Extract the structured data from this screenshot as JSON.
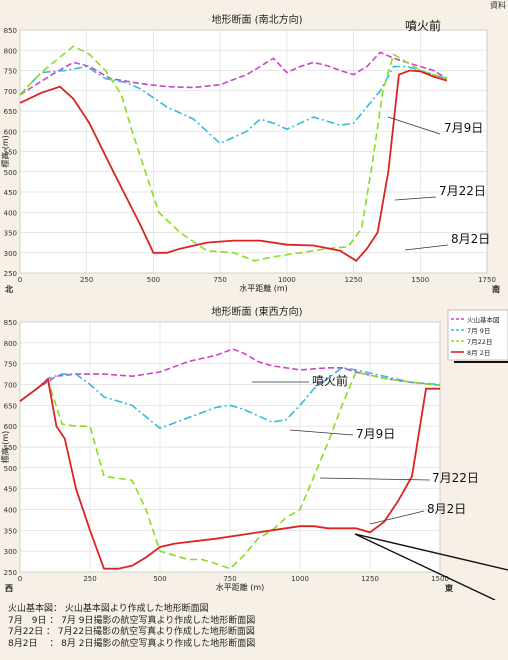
{
  "corner_label": "資料",
  "charts": [
    {
      "title": "地形断面 (南北方向)",
      "ylabel": "標高 (m)",
      "xlabel": "水平距離 (m)",
      "left_dir": "北",
      "right_dir": "南",
      "x_ticks": [
        "0",
        "250",
        "500",
        "750",
        "1000",
        "1250",
        "1500",
        "1750"
      ],
      "y_ticks": [
        "250",
        "300",
        "350",
        "400",
        "450",
        "500",
        "550",
        "600",
        "650",
        "700",
        "750",
        "800",
        "850"
      ],
      "callouts": {
        "pre": "噴火前",
        "jul9": "7月9日",
        "jul22": "7月22日",
        "aug2": "8月2日"
      }
    },
    {
      "title": "地形断面 (東西方向)",
      "ylabel": "標高 (m)",
      "xlabel": "水平距離 (m)",
      "left_dir": "西",
      "right_dir": "東",
      "x_ticks": [
        "0",
        "250",
        "500",
        "750",
        "1000",
        "1250",
        "1500"
      ],
      "y_ticks": [
        "250",
        "300",
        "350",
        "400",
        "450",
        "500",
        "550",
        "600",
        "650",
        "700",
        "750",
        "800",
        "850"
      ],
      "callouts": {
        "pre": "噴火前",
        "jul9": "7月9日",
        "jul22": "7月22日",
        "aug2": "8月2日"
      },
      "legend": [
        "火山基本図",
        "7月 9日",
        "7月22日",
        "8月 2日"
      ]
    }
  ],
  "notes": [
    "火山基本図： 火山基本図より作成した地形断面図",
    "7月　9日 ： 7月 9日撮影の航空写真より作成した地形断面図",
    "7月22日 ： 7月22日撮影の航空写真より作成した地形断面図",
    "8月2日　 ： 8月 2日撮影の航空写真より作成した地形断面図"
  ],
  "series_colors": {
    "pre": "#cc44cc",
    "jul9": "#33bbdd",
    "jul22": "#88dd22",
    "aug2": "#dd2222"
  },
  "chart_data": [
    {
      "type": "line",
      "title": "地形断面 (南北方向)",
      "xlabel": "水平距離 (m)",
      "ylabel": "標高 (m)",
      "xlim": [
        0,
        1750
      ],
      "ylim": [
        250,
        850
      ],
      "grid": true,
      "series": [
        {
          "name": "噴火前",
          "key": "pre",
          "x": [
            0,
            120,
            200,
            260,
            340,
            450,
            550,
            650,
            750,
            850,
            900,
            950,
            1000,
            1050,
            1100,
            1150,
            1200,
            1250,
            1300,
            1350,
            1400,
            1450,
            1500,
            1550,
            1600
          ],
          "y": [
            690,
            740,
            770,
            760,
            730,
            718,
            710,
            708,
            715,
            740,
            760,
            780,
            745,
            760,
            770,
            762,
            750,
            740,
            760,
            795,
            780,
            770,
            760,
            750,
            730
          ]
        },
        {
          "name": "7月 9日",
          "key": "jul9",
          "x": [
            0,
            80,
            170,
            250,
            320,
            400,
            450,
            550,
            650,
            750,
            850,
            900,
            950,
            1000,
            1050,
            1100,
            1150,
            1200,
            1250,
            1300,
            1350,
            1400,
            1450,
            1500,
            1550,
            1600
          ],
          "y": [
            690,
            745,
            750,
            760,
            730,
            720,
            705,
            660,
            630,
            570,
            600,
            630,
            620,
            605,
            620,
            635,
            625,
            615,
            620,
            660,
            700,
            760,
            760,
            750,
            740,
            730
          ]
        },
        {
          "name": "7月22日",
          "key": "jul22",
          "x": [
            0,
            80,
            200,
            260,
            320,
            380,
            420,
            480,
            520,
            600,
            700,
            800,
            880,
            950,
            1050,
            1150,
            1230,
            1280,
            1320,
            1360,
            1400,
            1450,
            1500,
            1550,
            1600
          ],
          "y": [
            690,
            745,
            810,
            790,
            750,
            690,
            600,
            480,
            400,
            350,
            305,
            300,
            280,
            290,
            300,
            310,
            315,
            360,
            520,
            700,
            790,
            770,
            750,
            740,
            730
          ]
        },
        {
          "name": "8月 2日",
          "key": "aug2",
          "x": [
            0,
            80,
            150,
            200,
            260,
            350,
            450,
            500,
            550,
            600,
            700,
            800,
            900,
            1000,
            1100,
            1200,
            1260,
            1300,
            1340,
            1380,
            1420,
            1460,
            1500,
            1550,
            1600
          ],
          "y": [
            670,
            695,
            710,
            680,
            620,
            500,
            370,
            300,
            300,
            310,
            325,
            330,
            330,
            320,
            318,
            305,
            280,
            310,
            350,
            500,
            740,
            750,
            748,
            735,
            725
          ]
        }
      ]
    },
    {
      "type": "line",
      "title": "地形断面 (東西方向)",
      "xlabel": "水平距離 (m)",
      "ylabel": "標高 (m)",
      "xlim": [
        0,
        1500
      ],
      "ylim": [
        250,
        850
      ],
      "grid": true,
      "series": [
        {
          "name": "噴火前",
          "key": "pre",
          "x": [
            0,
            60,
            130,
            200,
            300,
            400,
            500,
            600,
            700,
            760,
            800,
            850,
            900,
            950,
            1000,
            1100,
            1150,
            1200,
            1300,
            1400,
            1500
          ],
          "y": [
            660,
            690,
            720,
            725,
            725,
            720,
            730,
            755,
            770,
            785,
            775,
            755,
            745,
            740,
            735,
            740,
            740,
            730,
            715,
            705,
            698
          ]
        },
        {
          "name": "7月 9日",
          "key": "jul9",
          "x": [
            0,
            60,
            100,
            150,
            200,
            250,
            300,
            400,
            500,
            600,
            700,
            750,
            800,
            850,
            900,
            950,
            1000,
            1050,
            1100,
            1150,
            1200,
            1300,
            1400,
            1500
          ],
          "y": [
            660,
            690,
            715,
            725,
            725,
            700,
            670,
            650,
            595,
            620,
            645,
            650,
            640,
            625,
            610,
            615,
            650,
            690,
            715,
            740,
            735,
            720,
            705,
            700
          ]
        },
        {
          "name": "7月22日",
          "key": "jul22",
          "x": [
            0,
            60,
            100,
            150,
            200,
            250,
            300,
            400,
            450,
            500,
            550,
            600,
            650,
            700,
            750,
            800,
            850,
            900,
            950,
            1000,
            1050,
            1100,
            1150,
            1200,
            1300,
            1400,
            1500
          ],
          "y": [
            660,
            690,
            710,
            605,
            600,
            600,
            480,
            470,
            400,
            300,
            290,
            280,
            280,
            270,
            258,
            290,
            330,
            350,
            380,
            400,
            480,
            560,
            650,
            730,
            715,
            705,
            698
          ]
        },
        {
          "name": "8月 2日",
          "key": "aug2",
          "x": [
            0,
            60,
            100,
            130,
            160,
            200,
            250,
            300,
            350,
            400,
            450,
            500,
            550,
            600,
            700,
            800,
            900,
            1000,
            1050,
            1100,
            1150,
            1200,
            1250,
            1300,
            1350,
            1400,
            1450,
            1500
          ],
          "y": [
            660,
            690,
            712,
            600,
            570,
            450,
            350,
            258,
            258,
            265,
            285,
            310,
            318,
            322,
            330,
            340,
            350,
            360,
            360,
            355,
            355,
            355,
            345,
            370,
            420,
            480,
            690,
            690
          ]
        }
      ]
    }
  ]
}
